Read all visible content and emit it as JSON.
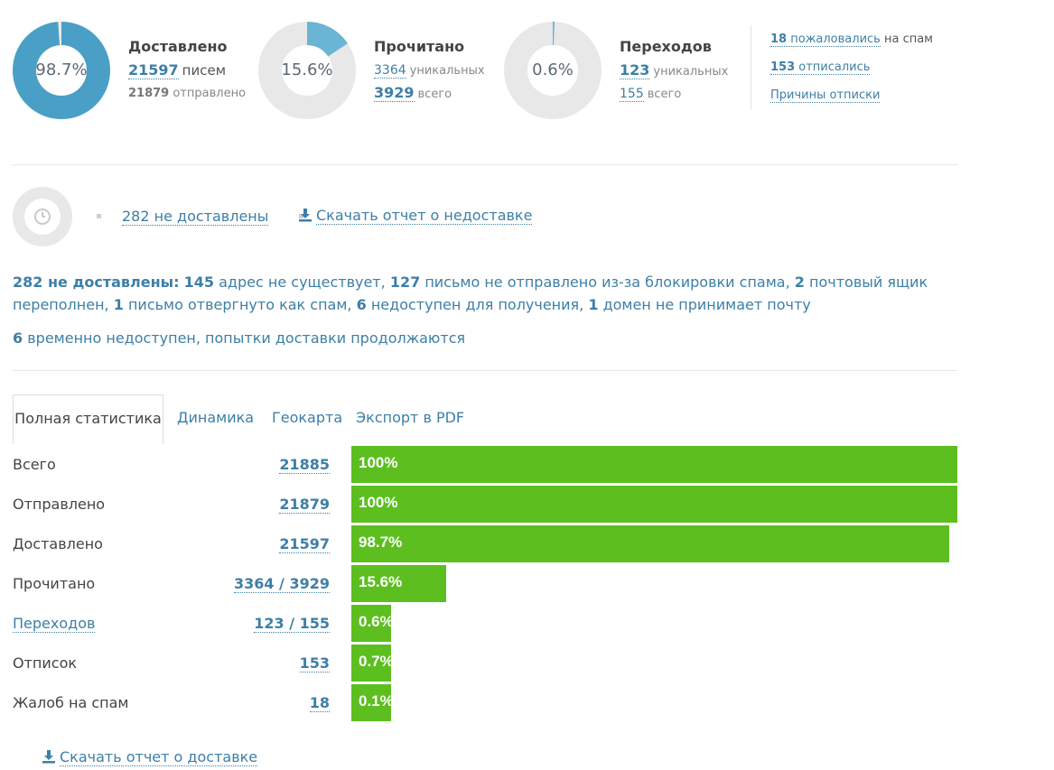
{
  "summary": {
    "delivered": {
      "title": "Доставлено",
      "percent_label": "98.7%",
      "percent": 98.7,
      "count": "21597",
      "count_suffix": "писем",
      "sent": "21879",
      "sent_suffix": "отправлено",
      "color": "#4a9fc6"
    },
    "read": {
      "title": "Прочитано",
      "percent_label": "15.6%",
      "percent": 15.6,
      "unique": "3364",
      "unique_suffix": "уникальных",
      "total": "3929",
      "total_suffix": "всего",
      "color": "#6ab4d6"
    },
    "clicks": {
      "title": "Переходов",
      "percent_label": "0.6%",
      "percent": 0.6,
      "unique": "123",
      "unique_suffix": "уникальных",
      "total": "155",
      "total_suffix": "всего",
      "color": "#6ab4d6"
    },
    "side": {
      "spam_num": "18",
      "spam_link": "пожаловались",
      "spam_suffix": "на спам",
      "unsub_num": "153",
      "unsub_link": "отписались",
      "reasons_link": "Причины отписки"
    }
  },
  "undelivered": {
    "link": "282 не доставлены",
    "download": "Скачать отчет о недоставке"
  },
  "details": {
    "head": "282 не доставлены:",
    "parts": [
      {
        "n": "145",
        "t": "адрес не существует,"
      },
      {
        "n": "127",
        "t": "письмо не отправлено из-за блокировки спама,"
      },
      {
        "n": "2",
        "t": "почтовый ящик переполнен,"
      },
      {
        "n": "1",
        "t": "письмо отвергнуто как спам,"
      },
      {
        "n": "6",
        "t": "недоступен для получения,"
      },
      {
        "n": "1",
        "t": "домен не принимает почту"
      }
    ],
    "pending_n": "6",
    "pending_t": "временно недоступен, попытки доставки продолжаются"
  },
  "tabs": [
    "Полная статистика",
    "Динамика",
    "Геокарта",
    "Экспорт в PDF"
  ],
  "table": [
    {
      "label": "Всего",
      "value": "21885",
      "bar_label": "100%",
      "percent": 100,
      "label_link": false
    },
    {
      "label": "Отправлено",
      "value": "21879",
      "bar_label": "100%",
      "percent": 100,
      "label_link": false
    },
    {
      "label": "Доставлено",
      "value": "21597",
      "bar_label": "98.7%",
      "percent": 98.7,
      "label_link": false
    },
    {
      "label": "Прочитано",
      "value": "3364 / 3929",
      "bar_label": "15.6%",
      "percent": 15.6,
      "label_link": false
    },
    {
      "label": "Переходов",
      "value": "123 / 155",
      "bar_label": "0.6%",
      "percent": 0.6,
      "label_link": true
    },
    {
      "label": "Отписок",
      "value": "153",
      "bar_label": "0.7%",
      "percent": 0.7,
      "label_link": false
    },
    {
      "label": "Жалоб на спам",
      "value": "18",
      "bar_label": "0.1%",
      "percent": 0.1,
      "label_link": false
    }
  ],
  "colors": {
    "accent": "#3d7fa6",
    "bar": "#5cbf1f",
    "track": "#e8e8e8"
  },
  "download_delivery": "Скачать отчет о доставке"
}
